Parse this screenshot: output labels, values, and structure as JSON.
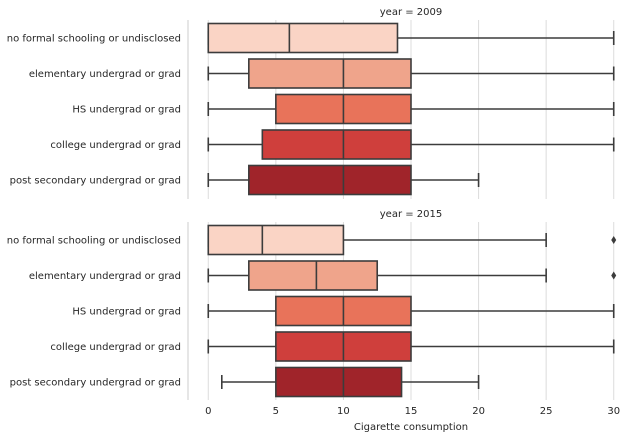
{
  "chart_data": {
    "type": "box",
    "orientation": "horizontal",
    "xlabel": "Cigarette consumption",
    "xlim": [
      -1.5,
      31.5
    ],
    "xticks": [
      0,
      5,
      10,
      15,
      20,
      25,
      30
    ],
    "grid": "vertical",
    "categories": [
      "no formal schooling or undisclosed",
      "elementary undergrad or grad",
      "HS undergrad or grad",
      "college undergrad or grad",
      "post secondary undergrad or grad"
    ],
    "colors": [
      "#fad4c5",
      "#efa48b",
      "#e8735a",
      "#cf3f3c",
      "#a0242a"
    ],
    "panels": [
      {
        "title": "year = 2009",
        "boxes": [
          {
            "whisker_low": 0,
            "q1": 0,
            "median": 6,
            "q3": 14,
            "whisker_high": 30,
            "outliers": []
          },
          {
            "whisker_low": 0,
            "q1": 3,
            "median": 10,
            "q3": 15,
            "whisker_high": 30,
            "outliers": []
          },
          {
            "whisker_low": 0,
            "q1": 5,
            "median": 10,
            "q3": 15,
            "whisker_high": 30,
            "outliers": []
          },
          {
            "whisker_low": 0,
            "q1": 4,
            "median": 10,
            "q3": 15,
            "whisker_high": 30,
            "outliers": []
          },
          {
            "whisker_low": 0,
            "q1": 3,
            "median": 10,
            "q3": 15,
            "whisker_high": 20,
            "outliers": []
          }
        ]
      },
      {
        "title": "year = 2015",
        "boxes": [
          {
            "whisker_low": 0,
            "q1": 0,
            "median": 4,
            "q3": 10,
            "whisker_high": 25,
            "outliers": [
              30
            ]
          },
          {
            "whisker_low": 0,
            "q1": 3,
            "median": 8,
            "q3": 12.5,
            "whisker_high": 25,
            "outliers": [
              30
            ]
          },
          {
            "whisker_low": 0,
            "q1": 5,
            "median": 10,
            "q3": 15,
            "whisker_high": 30,
            "outliers": []
          },
          {
            "whisker_low": 0,
            "q1": 5,
            "median": 10,
            "q3": 15,
            "whisker_high": 30,
            "outliers": []
          },
          {
            "whisker_low": 1,
            "q1": 5,
            "median": 10,
            "q3": 14.3,
            "whisker_high": 20,
            "outliers": []
          }
        ]
      }
    ]
  }
}
